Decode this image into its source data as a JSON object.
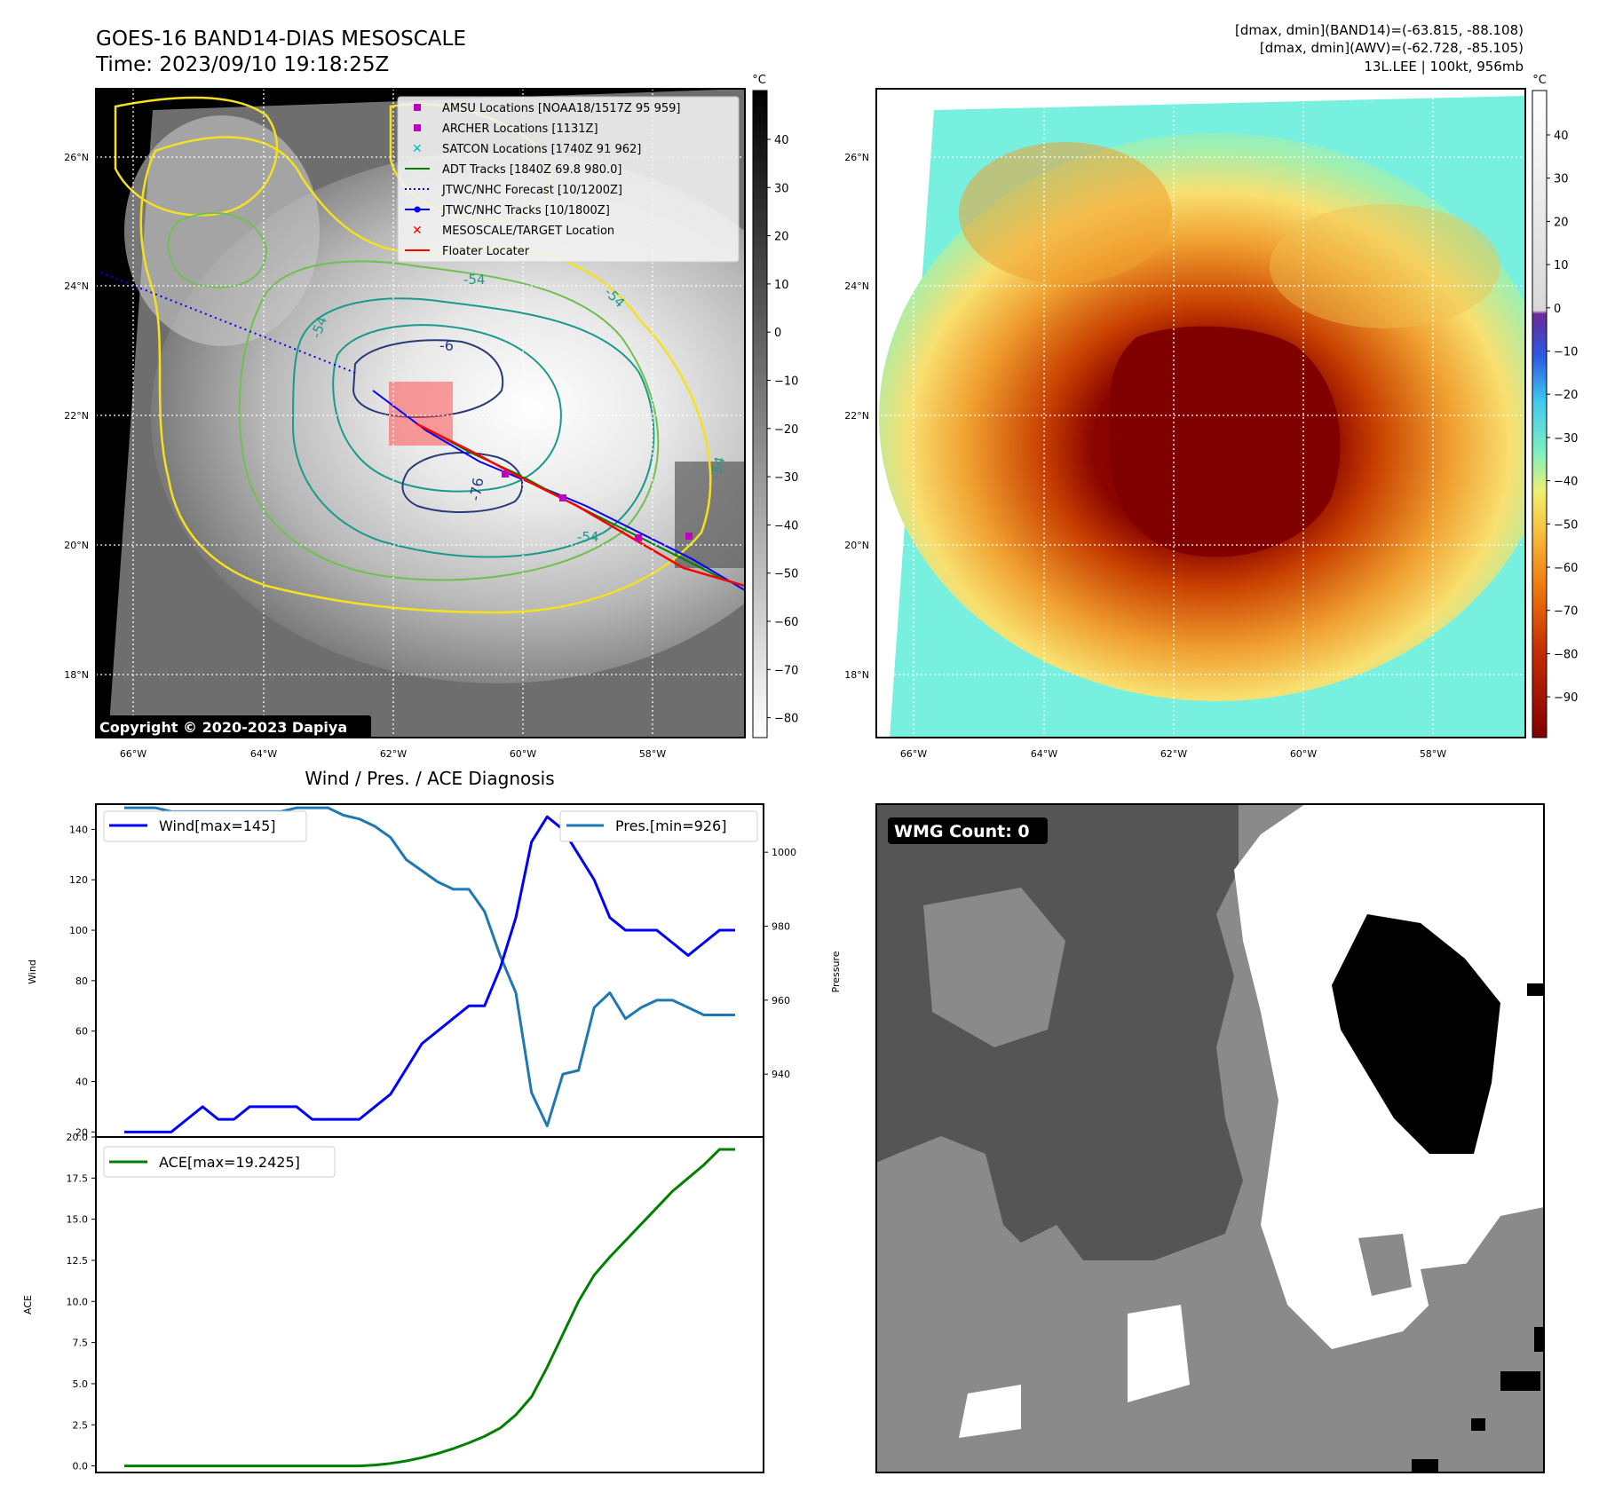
{
  "header": {
    "title_line1": "GOES-16 BAND14-DIAS MESOSCALE",
    "title_line2": "Time: 2023/09/10 19:18:25Z",
    "info_line1": "[dmax, dmin](BAND14)=(-63.815, -88.108)",
    "info_line2": "[dmax, dmin](AWV)=(-62.728, -85.105)",
    "info_line3": "13L.LEE | 100kt, 956mb"
  },
  "map_axes": {
    "lon_labels": [
      "66°W",
      "64°W",
      "62°W",
      "60°W",
      "58°W"
    ],
    "lat_labels": [
      "26°N",
      "24°N",
      "22°N",
      "20°N",
      "18°N"
    ]
  },
  "ir_panel": {
    "copyright": "Copyright © 2020-2023 Dapiya",
    "contour_labels": [
      "-76",
      "-6",
      "-54",
      "-54",
      "-54",
      "-54",
      "-54"
    ],
    "legend": [
      {
        "label": "AMSU Locations [NOAA18/1517Z 95 959]",
        "color": "#c000c0",
        "marker": "square"
      },
      {
        "label": "ARCHER Locations [1131Z]",
        "color": "#c000c0",
        "marker": "square"
      },
      {
        "label": "SATCON Locations [1740Z 91 962]",
        "color": "#00c0c0",
        "marker": "x"
      },
      {
        "label": "ADT Tracks [1840Z 69.8 980.0]",
        "color": "#008000",
        "marker": "line"
      },
      {
        "label": "JTWC/NHC Forecast [10/1200Z]",
        "color": "#0000ff",
        "marker": "dotted"
      },
      {
        "label": "JTWC/NHC Tracks [10/1800Z]",
        "color": "#0000ff",
        "marker": "line-dot"
      },
      {
        "label": "MESOSCALE/TARGET Location",
        "color": "#ff0000",
        "marker": "x"
      },
      {
        "label": "Floater Locater",
        "color": "#ff0000",
        "marker": "line"
      }
    ],
    "colorbar": {
      "unit": "°C",
      "ticks": [
        "40",
        "30",
        "20",
        "10",
        "0",
        "−10",
        "−20",
        "−30",
        "−40",
        "−50",
        "−60",
        "−70",
        "−80"
      ]
    }
  },
  "color_panel": {
    "colorbar": {
      "unit": "°C",
      "ticks": [
        "40",
        "30",
        "20",
        "10",
        "0",
        "−10",
        "−20",
        "−30",
        "−40",
        "−50",
        "−60",
        "−70",
        "−80",
        "−90"
      ]
    }
  },
  "wmg_panel": {
    "count_label": "WMG Count: 0"
  },
  "chart_data": [
    {
      "type": "line",
      "title": "Wind / Pres. / ACE Diagnosis",
      "ylabel": "Wind",
      "ylabel_right": "Pressure",
      "ylim": [
        18,
        150
      ],
      "ylim_right": [
        923,
        1013
      ],
      "yticks": [
        20,
        40,
        60,
        80,
        100,
        120,
        140
      ],
      "yticks_right": [
        940,
        960,
        980,
        1000
      ],
      "x": [
        0,
        1,
        2,
        3,
        4,
        5,
        6,
        7,
        8,
        9,
        10,
        11,
        12,
        13,
        14,
        15,
        16,
        17,
        18,
        19,
        20,
        21,
        22,
        23,
        24,
        25,
        26,
        27,
        28,
        29,
        30,
        31,
        32,
        33,
        34,
        35,
        36,
        37,
        38,
        39
      ],
      "series": [
        {
          "name": "Wind[max=145]",
          "axis": "left",
          "color": "#0000ff",
          "values": [
            20,
            20,
            20,
            20,
            25,
            30,
            25,
            25,
            30,
            30,
            30,
            30,
            25,
            25,
            25,
            25,
            30,
            35,
            45,
            55,
            60,
            65,
            70,
            70,
            85,
            105,
            135,
            145,
            140,
            130,
            120,
            105,
            100,
            100,
            100,
            95,
            90,
            95,
            100,
            100
          ]
        },
        {
          "name": "Pres.[min=926]",
          "axis": "right",
          "color": "#1f77b4",
          "values": [
            1012,
            1012,
            1012,
            1011,
            1011,
            1011,
            1011,
            1011,
            1011,
            1011,
            1011,
            1012,
            1012,
            1012,
            1010,
            1009,
            1007,
            1004,
            998,
            995,
            992,
            990,
            990,
            984,
            972,
            962,
            935,
            926,
            940,
            941,
            958,
            962,
            955,
            958,
            960,
            960,
            958,
            956,
            956,
            956
          ]
        }
      ]
    },
    {
      "type": "line",
      "ylabel": "ACE",
      "ylim": [
        -0.4,
        20.0
      ],
      "yticks": [
        0.0,
        2.5,
        5.0,
        7.5,
        10.0,
        12.5,
        15.0,
        17.5,
        20.0
      ],
      "ytick_labels": [
        "0.0",
        "2.5",
        "5.0",
        "7.5",
        "10.0",
        "12.5",
        "15.0",
        "17.5",
        "20.0"
      ],
      "x": [
        0,
        1,
        2,
        3,
        4,
        5,
        6,
        7,
        8,
        9,
        10,
        11,
        12,
        13,
        14,
        15,
        16,
        17,
        18,
        19,
        20,
        21,
        22,
        23,
        24,
        25,
        26,
        27,
        28,
        29,
        30,
        31,
        32,
        33,
        34,
        35,
        36,
        37,
        38,
        39
      ],
      "series": [
        {
          "name": "ACE[max=19.2425]",
          "color": "#008000",
          "values": [
            0,
            0,
            0,
            0,
            0,
            0,
            0,
            0,
            0,
            0,
            0,
            0,
            0,
            0,
            0,
            0,
            0.05,
            0.15,
            0.3,
            0.5,
            0.75,
            1.05,
            1.4,
            1.8,
            2.3,
            3.1,
            4.2,
            6.0,
            8.0,
            10.0,
            11.6,
            12.7,
            13.7,
            14.7,
            15.7,
            16.7,
            17.5,
            18.3,
            19.2425,
            19.2425
          ]
        }
      ]
    }
  ]
}
